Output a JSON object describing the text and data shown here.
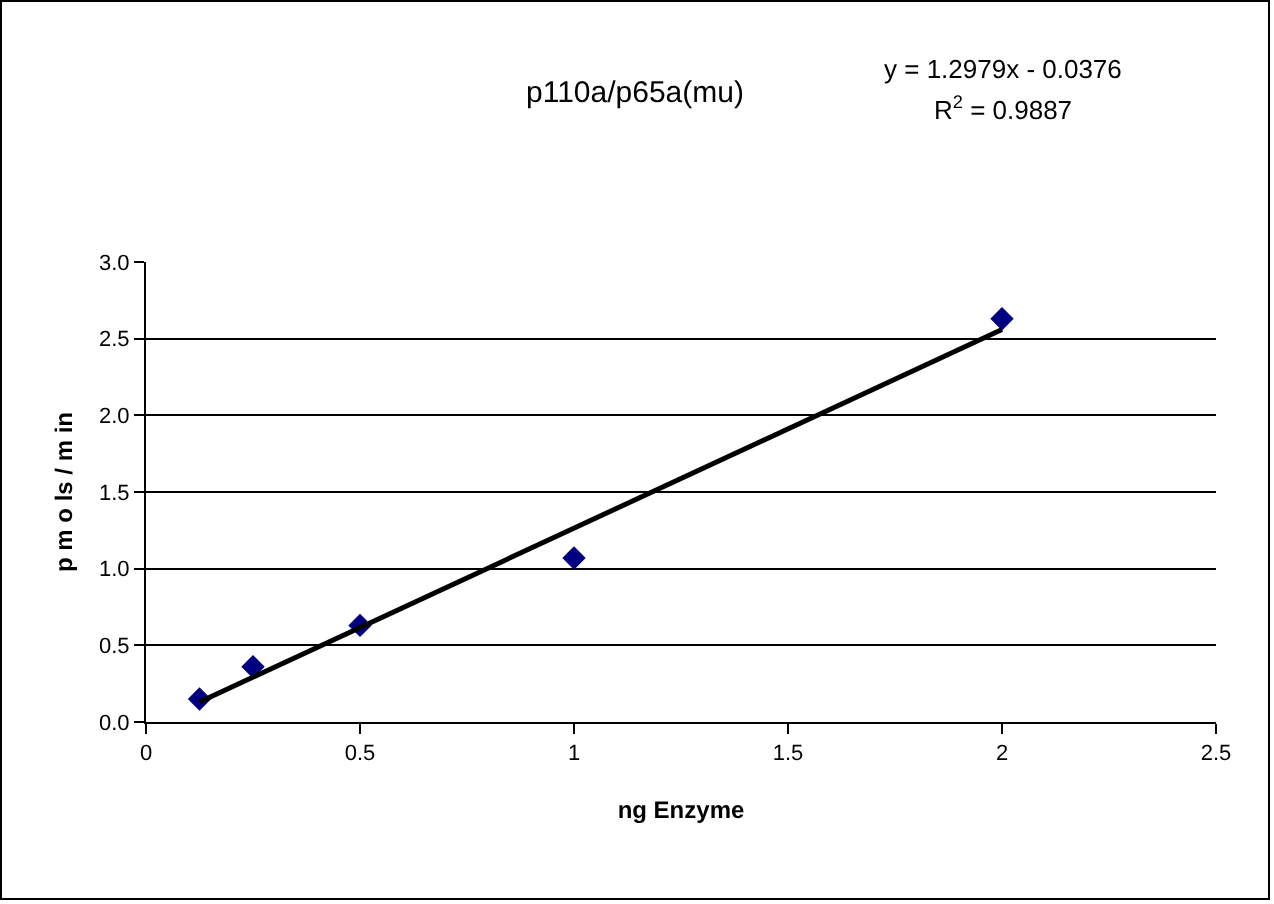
{
  "chart_data": {
    "type": "scatter",
    "title": "p110a/p65a(mu)",
    "xlabel": "ng Enzyme",
    "ylabel": "p m o ls / m in",
    "annotations": [
      "y = 1.2979x - 0.0376",
      "R$^{2}$ = 0.9887"
    ],
    "series": [
      {
        "color": "#000080",
        "marker": "diamond",
        "x": [
          0.125,
          0.25,
          0.5,
          1,
          2
        ],
        "values": [
          0.15,
          0.36,
          0.63,
          1.07,
          2.63
        ]
      },
      {
        "type": "line",
        "color": "#000000",
        "marker": "none",
        "x": [
          0.125,
          2
        ],
        "values": [
          0.13,
          2.56
        ]
      }
    ],
    "xlim": [
      0,
      2.5
    ],
    "xticks": [
      0,
      0.5,
      1,
      1.5,
      2,
      2.5
    ],
    "ylim": [
      0,
      3
    ],
    "yticks": [
      {
        "value": 0,
        "label": "0.0"
      },
      {
        "value": 0.5,
        "label": "0.5"
      },
      {
        "value": 1,
        "label": "1.0"
      },
      {
        "value": 1.5,
        "label": "1.5"
      },
      {
        "value": 2,
        "label": "2.0"
      },
      {
        "value": 2.5,
        "label": "2.5"
      },
      {
        "value": 3,
        "label": "3.0"
      }
    ],
    "grid": "y"
  }
}
